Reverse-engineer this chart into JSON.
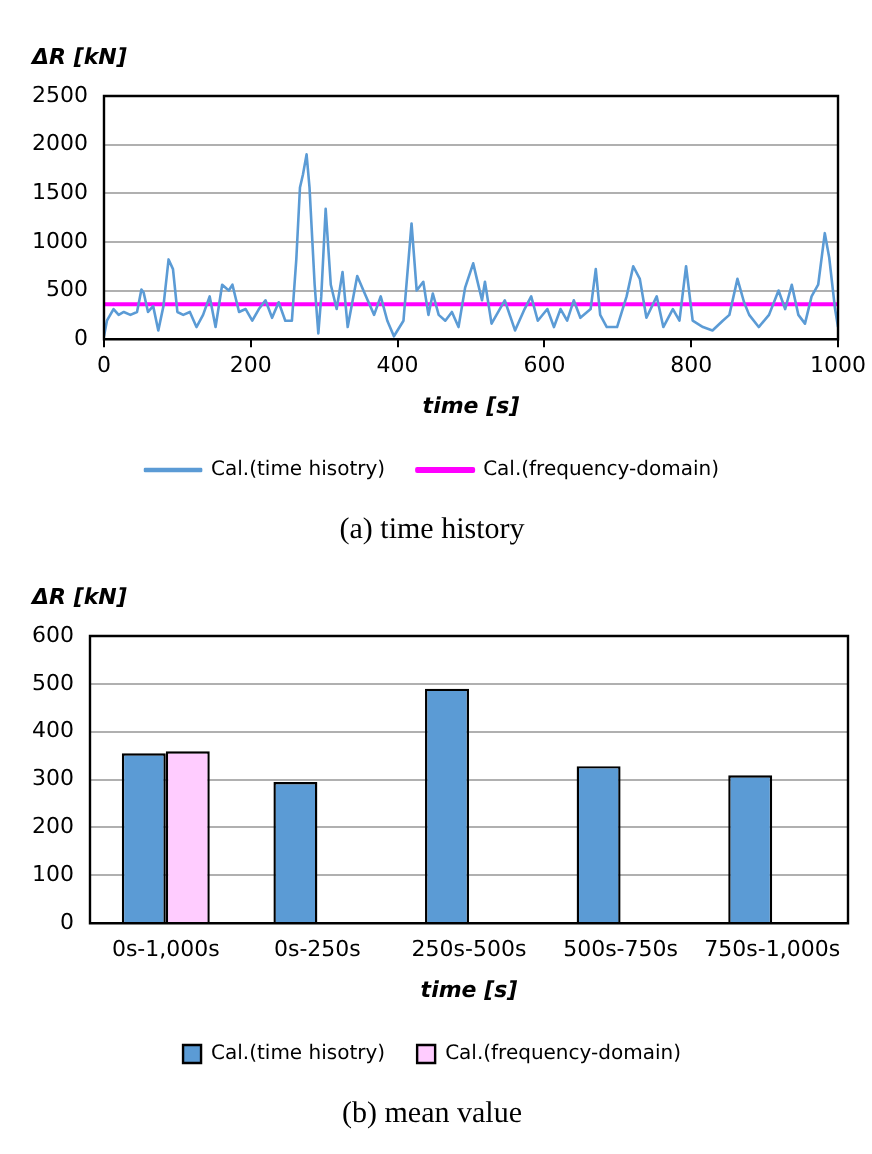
{
  "chart_data": [
    {
      "type": "line",
      "title": "(a) time history",
      "xlabel": "time [s]",
      "ylabel": "ΔR [kN]",
      "xlim": [
        0,
        1000
      ],
      "xticks": [
        0,
        200,
        400,
        600,
        800,
        1000
      ],
      "ylim": [
        0,
        2500
      ],
      "yticks": [
        0,
        500,
        1000,
        1500,
        2000,
        2500
      ],
      "grid": "y",
      "legend": "bottom",
      "series": [
        {
          "name": "Cal.(time hisotry)",
          "color": "#5b9bd5",
          "x": [
            0,
            4,
            13,
            20,
            27,
            36,
            45,
            51,
            54,
            60,
            67,
            74,
            81,
            88,
            94,
            100,
            108,
            117,
            126,
            135,
            144,
            152,
            161,
            170,
            175,
            184,
            193,
            202,
            211,
            220,
            229,
            238,
            247,
            256,
            262,
            267,
            271,
            276,
            280,
            287,
            292,
            296,
            302,
            309,
            317,
            325,
            332,
            345,
            357,
            368,
            377,
            386,
            395,
            408,
            419,
            426,
            435,
            442,
            448,
            456,
            465,
            474,
            483,
            492,
            503,
            508,
            515,
            519,
            528,
            546,
            560,
            573,
            582,
            591,
            604,
            613,
            622,
            631,
            640,
            649,
            663,
            670,
            676,
            685,
            699,
            712,
            721,
            730,
            739,
            753,
            762,
            775,
            784,
            793,
            802,
            816,
            829,
            843,
            852,
            863,
            872,
            879,
            892,
            906,
            919,
            928,
            937,
            946,
            955,
            964,
            973,
            982,
            988,
            996,
            1000
          ],
          "values": [
            30,
            190,
            310,
            250,
            280,
            250,
            280,
            510,
            480,
            280,
            340,
            90,
            340,
            820,
            720,
            280,
            250,
            280,
            125,
            250,
            440,
            125,
            560,
            500,
            560,
            280,
            310,
            190,
            310,
            400,
            220,
            380,
            190,
            190,
            820,
            1560,
            1690,
            1900,
            1560,
            560,
            60,
            440,
            1340,
            560,
            310,
            690,
            125,
            650,
            440,
            250,
            440,
            190,
            30,
            190,
            1190,
            500,
            590,
            250,
            470,
            250,
            190,
            280,
            125,
            530,
            780,
            620,
            400,
            590,
            160,
            400,
            90,
            310,
            440,
            190,
            310,
            125,
            310,
            190,
            400,
            220,
            310,
            720,
            250,
            125,
            125,
            440,
            750,
            620,
            220,
            440,
            125,
            310,
            190,
            750,
            190,
            125,
            90,
            190,
            250,
            620,
            380,
            250,
            125,
            250,
            500,
            310,
            560,
            250,
            160,
            440,
            560,
            1090,
            840,
            310,
            125
          ]
        },
        {
          "name": "Cal.(frequency-domain)",
          "color": "#ff00ff",
          "x": [
            0,
            1000
          ],
          "values": [
            360,
            360
          ]
        }
      ]
    },
    {
      "type": "bar",
      "title": "(b) mean value",
      "xlabel": "time [s]",
      "ylabel": "ΔR [kN]",
      "categories": [
        "0s-1,000s",
        "0s-250s",
        "250s-500s",
        "500s-750s",
        "750s-1,000s"
      ],
      "ylim": [
        0,
        600
      ],
      "yticks": [
        0,
        100,
        200,
        300,
        400,
        500,
        600
      ],
      "grid": "y",
      "legend": "bottom",
      "series": [
        {
          "name": "Cal.(time hisotry)",
          "color": "#5b9bd5",
          "values": [
            355,
            295,
            490,
            328,
            309
          ]
        },
        {
          "name": "Cal.(frequency-domain)",
          "color": "#ffccff",
          "values": [
            359,
            null,
            null,
            null,
            null
          ]
        }
      ]
    }
  ]
}
